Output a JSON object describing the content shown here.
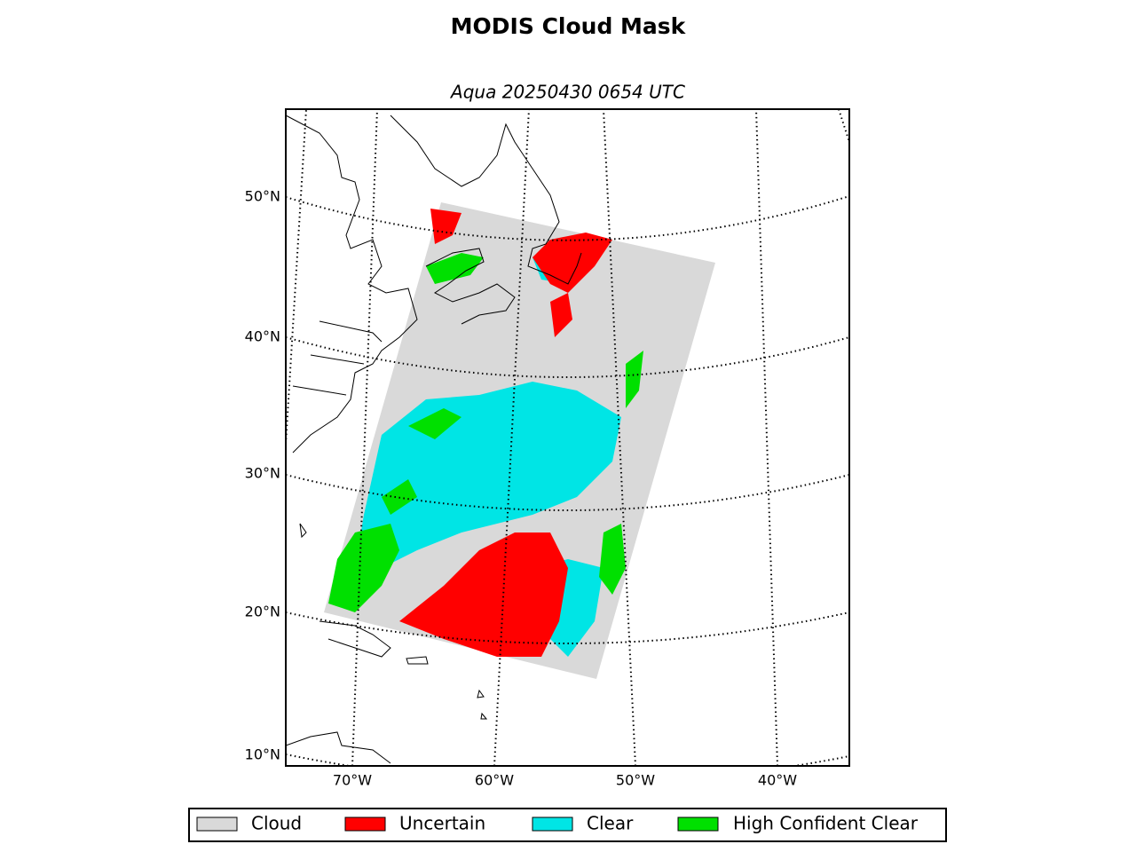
{
  "title": "MODIS Cloud Mask",
  "subtitle": "Aqua 20250430 0654 UTC",
  "lat_labels": [
    "50°N",
    "40°N",
    "30°N",
    "20°N",
    "10°N"
  ],
  "lon_labels": [
    "70°W",
    "60°W",
    "50°W",
    "40°W"
  ],
  "legend": [
    {
      "label": "Cloud",
      "color": "#d9d9d9"
    },
    {
      "label": "Uncertain",
      "color": "#ff0000"
    },
    {
      "label": "Clear",
      "color": "#00e5e5"
    },
    {
      "label": "High Confident Clear",
      "color": "#00e000"
    }
  ]
}
